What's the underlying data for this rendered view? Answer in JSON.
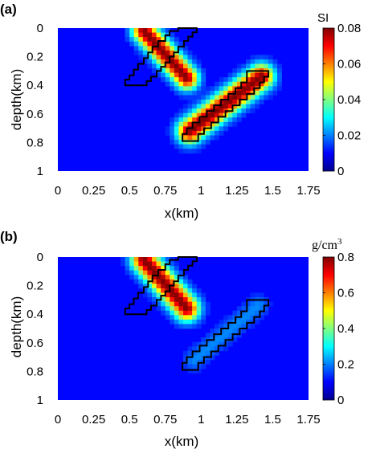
{
  "chart_data": [
    {
      "type": "heatmap",
      "panel_label": "(a)",
      "xlabel": "x(km)",
      "ylabel": "depth(km)",
      "xlim": [
        0,
        1.75
      ],
      "ylim": [
        0,
        1
      ],
      "y_reversed": true,
      "x_ticks": [
        "0",
        "0.25",
        "0.5",
        "0.75",
        "1",
        "1.25",
        "1.5",
        "1.75"
      ],
      "x_tick_values": [
        0,
        0.25,
        0.5,
        0.75,
        1,
        1.25,
        1.5,
        1.75
      ],
      "y_ticks": [
        "0",
        "0.2",
        "0.4",
        "0.6",
        "0.8",
        "1"
      ],
      "y_tick_values": [
        0,
        0.2,
        0.4,
        0.6,
        0.8,
        1
      ],
      "colorbar": {
        "unit": "SI",
        "min": 0,
        "max": 0.08,
        "ticks": [
          "0.08",
          "0.06",
          "0.04",
          "0.02",
          "0"
        ],
        "tick_values": [
          0.08,
          0.06,
          0.04,
          0.02,
          0
        ]
      },
      "sources": [
        {
          "x0": 0.6,
          "y0": 0.02,
          "x1": 0.9,
          "y1": 0.35,
          "peak": 0.08,
          "spread": 0.055
        },
        {
          "x0": 0.92,
          "y0": 0.72,
          "x1": 1.42,
          "y1": 0.34,
          "peak": 0.08,
          "spread": 0.06
        }
      ],
      "outlines": [
        [
          [
            0.84,
            0
          ],
          [
            0.97,
            0
          ],
          [
            0.97,
            0.03
          ],
          [
            0.94,
            0.03
          ],
          [
            0.94,
            0.06
          ],
          [
            0.91,
            0.06
          ],
          [
            0.91,
            0.09
          ],
          [
            0.88,
            0.09
          ],
          [
            0.88,
            0.13
          ],
          [
            0.84,
            0.13
          ],
          [
            0.84,
            0.17
          ],
          [
            0.81,
            0.17
          ],
          [
            0.81,
            0.2
          ],
          [
            0.78,
            0.2
          ],
          [
            0.78,
            0.24
          ],
          [
            0.75,
            0.24
          ],
          [
            0.75,
            0.27
          ],
          [
            0.72,
            0.27
          ],
          [
            0.72,
            0.3
          ],
          [
            0.69,
            0.3
          ],
          [
            0.69,
            0.34
          ],
          [
            0.65,
            0.34
          ],
          [
            0.65,
            0.37
          ],
          [
            0.62,
            0.37
          ],
          [
            0.62,
            0.4
          ],
          [
            0.47,
            0.4
          ],
          [
            0.47,
            0.36
          ],
          [
            0.5,
            0.36
          ],
          [
            0.5,
            0.33
          ],
          [
            0.53,
            0.33
          ],
          [
            0.53,
            0.29
          ],
          [
            0.56,
            0.29
          ],
          [
            0.56,
            0.25
          ],
          [
            0.6,
            0.25
          ],
          [
            0.6,
            0.21
          ],
          [
            0.63,
            0.21
          ],
          [
            0.63,
            0.17
          ],
          [
            0.66,
            0.17
          ],
          [
            0.66,
            0.13
          ],
          [
            0.7,
            0.13
          ],
          [
            0.7,
            0.09
          ],
          [
            0.75,
            0.09
          ],
          [
            0.75,
            0.05
          ],
          [
            0.78,
            0.05
          ],
          [
            0.78,
            0.02
          ],
          [
            0.84,
            0.02
          ]
        ],
        [
          [
            1.32,
            0.3
          ],
          [
            1.47,
            0.3
          ],
          [
            1.47,
            0.34
          ],
          [
            1.44,
            0.34
          ],
          [
            1.44,
            0.38
          ],
          [
            1.41,
            0.38
          ],
          [
            1.41,
            0.42
          ],
          [
            1.37,
            0.42
          ],
          [
            1.37,
            0.46
          ],
          [
            1.32,
            0.46
          ],
          [
            1.32,
            0.5
          ],
          [
            1.27,
            0.5
          ],
          [
            1.27,
            0.54
          ],
          [
            1.22,
            0.54
          ],
          [
            1.22,
            0.58
          ],
          [
            1.17,
            0.58
          ],
          [
            1.17,
            0.62
          ],
          [
            1.12,
            0.62
          ],
          [
            1.12,
            0.66
          ],
          [
            1.07,
            0.66
          ],
          [
            1.07,
            0.7
          ],
          [
            1.02,
            0.7
          ],
          [
            1.02,
            0.74
          ],
          [
            0.98,
            0.74
          ],
          [
            0.98,
            0.79
          ],
          [
            0.87,
            0.79
          ],
          [
            0.87,
            0.74
          ],
          [
            0.9,
            0.74
          ],
          [
            0.9,
            0.7
          ],
          [
            0.94,
            0.7
          ],
          [
            0.94,
            0.66
          ],
          [
            0.99,
            0.66
          ],
          [
            0.99,
            0.62
          ],
          [
            1.04,
            0.62
          ],
          [
            1.04,
            0.58
          ],
          [
            1.09,
            0.58
          ],
          [
            1.09,
            0.54
          ],
          [
            1.14,
            0.54
          ],
          [
            1.14,
            0.5
          ],
          [
            1.19,
            0.5
          ],
          [
            1.19,
            0.46
          ],
          [
            1.24,
            0.46
          ],
          [
            1.24,
            0.42
          ],
          [
            1.28,
            0.42
          ],
          [
            1.28,
            0.38
          ],
          [
            1.32,
            0.38
          ]
        ]
      ]
    },
    {
      "type": "heatmap",
      "panel_label": "(b)",
      "xlabel": "x(km)",
      "ylabel": "depth(km)",
      "xlim": [
        0,
        1.75
      ],
      "ylim": [
        0,
        1
      ],
      "y_reversed": true,
      "x_ticks": [
        "0",
        "0.25",
        "0.5",
        "0.75",
        "1",
        "1.25",
        "1.5",
        "1.75"
      ],
      "x_tick_values": [
        0,
        0.25,
        0.5,
        0.75,
        1,
        1.25,
        1.5,
        1.75
      ],
      "y_ticks": [
        "0",
        "0.2",
        "0.4",
        "0.6",
        "0.8",
        "1"
      ],
      "y_tick_values": [
        0,
        0.2,
        0.4,
        0.6,
        0.8,
        1
      ],
      "colorbar": {
        "unit_base": "g/cm",
        "unit_exp": "3",
        "min": 0,
        "max": 0.8,
        "ticks": [
          "0.8",
          "0.6",
          "0.4",
          "0.2",
          "0"
        ],
        "tick_values": [
          0.8,
          0.6,
          0.4,
          0.2,
          0
        ]
      },
      "sources": [
        {
          "x0": 0.6,
          "y0": 0.02,
          "x1": 0.9,
          "y1": 0.36,
          "peak": 0.8,
          "spread": 0.06
        },
        {
          "x0": 0.95,
          "y0": 0.72,
          "x1": 1.4,
          "y1": 0.34,
          "peak": 0.12,
          "spread": 0.05
        }
      ],
      "outlines": [
        [
          [
            0.84,
            0
          ],
          [
            0.97,
            0
          ],
          [
            0.97,
            0.03
          ],
          [
            0.94,
            0.03
          ],
          [
            0.94,
            0.06
          ],
          [
            0.91,
            0.06
          ],
          [
            0.91,
            0.09
          ],
          [
            0.88,
            0.09
          ],
          [
            0.88,
            0.13
          ],
          [
            0.84,
            0.13
          ],
          [
            0.84,
            0.17
          ],
          [
            0.81,
            0.17
          ],
          [
            0.81,
            0.2
          ],
          [
            0.78,
            0.2
          ],
          [
            0.78,
            0.24
          ],
          [
            0.75,
            0.24
          ],
          [
            0.75,
            0.27
          ],
          [
            0.72,
            0.27
          ],
          [
            0.72,
            0.3
          ],
          [
            0.69,
            0.3
          ],
          [
            0.69,
            0.34
          ],
          [
            0.65,
            0.34
          ],
          [
            0.65,
            0.37
          ],
          [
            0.62,
            0.37
          ],
          [
            0.62,
            0.4
          ],
          [
            0.47,
            0.4
          ],
          [
            0.47,
            0.36
          ],
          [
            0.5,
            0.36
          ],
          [
            0.5,
            0.33
          ],
          [
            0.53,
            0.33
          ],
          [
            0.53,
            0.29
          ],
          [
            0.56,
            0.29
          ],
          [
            0.56,
            0.25
          ],
          [
            0.6,
            0.25
          ],
          [
            0.6,
            0.21
          ],
          [
            0.63,
            0.21
          ],
          [
            0.63,
            0.17
          ],
          [
            0.66,
            0.17
          ],
          [
            0.66,
            0.13
          ],
          [
            0.7,
            0.13
          ],
          [
            0.7,
            0.09
          ],
          [
            0.75,
            0.09
          ],
          [
            0.75,
            0.05
          ],
          [
            0.78,
            0.05
          ],
          [
            0.78,
            0.02
          ],
          [
            0.84,
            0.02
          ]
        ],
        [
          [
            1.32,
            0.3
          ],
          [
            1.47,
            0.3
          ],
          [
            1.47,
            0.34
          ],
          [
            1.44,
            0.34
          ],
          [
            1.44,
            0.38
          ],
          [
            1.41,
            0.38
          ],
          [
            1.41,
            0.42
          ],
          [
            1.37,
            0.42
          ],
          [
            1.37,
            0.46
          ],
          [
            1.32,
            0.46
          ],
          [
            1.32,
            0.5
          ],
          [
            1.27,
            0.5
          ],
          [
            1.27,
            0.54
          ],
          [
            1.22,
            0.54
          ],
          [
            1.22,
            0.58
          ],
          [
            1.17,
            0.58
          ],
          [
            1.17,
            0.62
          ],
          [
            1.12,
            0.62
          ],
          [
            1.12,
            0.66
          ],
          [
            1.07,
            0.66
          ],
          [
            1.07,
            0.7
          ],
          [
            1.02,
            0.7
          ],
          [
            1.02,
            0.74
          ],
          [
            0.98,
            0.74
          ],
          [
            0.98,
            0.79
          ],
          [
            0.87,
            0.79
          ],
          [
            0.87,
            0.74
          ],
          [
            0.9,
            0.74
          ],
          [
            0.9,
            0.7
          ],
          [
            0.94,
            0.7
          ],
          [
            0.94,
            0.66
          ],
          [
            0.99,
            0.66
          ],
          [
            0.99,
            0.62
          ],
          [
            1.04,
            0.62
          ],
          [
            1.04,
            0.58
          ],
          [
            1.09,
            0.58
          ],
          [
            1.09,
            0.54
          ],
          [
            1.14,
            0.54
          ],
          [
            1.14,
            0.5
          ],
          [
            1.19,
            0.5
          ],
          [
            1.19,
            0.46
          ],
          [
            1.24,
            0.46
          ],
          [
            1.24,
            0.42
          ],
          [
            1.28,
            0.42
          ],
          [
            1.28,
            0.38
          ],
          [
            1.32,
            0.38
          ]
        ]
      ]
    }
  ]
}
